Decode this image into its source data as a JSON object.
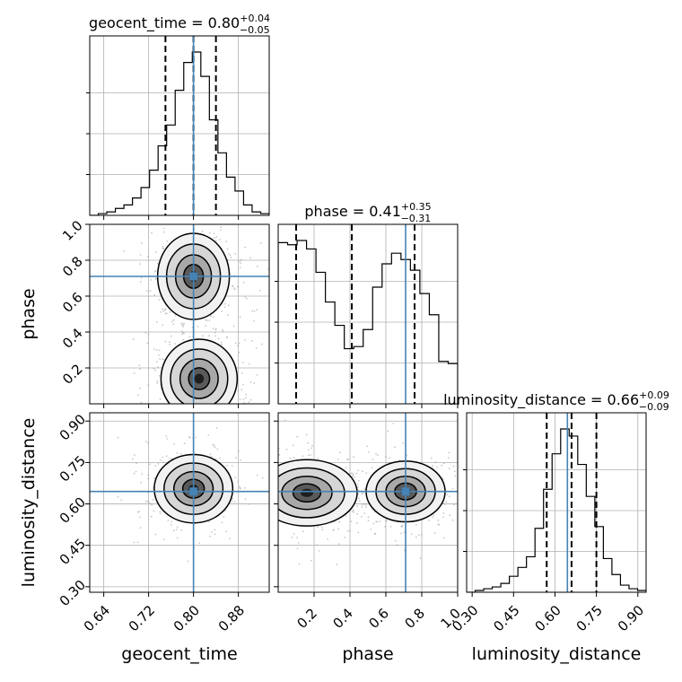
{
  "colors": {
    "truth": "#4682b4",
    "hist": "#000000",
    "quantile": "#000000",
    "scatter": "#9a9a9a"
  },
  "chart_data": {
    "type": "corner",
    "grid": true,
    "params": [
      {
        "name": "geocent_time",
        "xlabel": "geocent_time",
        "range": [
          0.615,
          0.935
        ],
        "ticks": [
          "0.64",
          "0.72",
          "0.80",
          "0.88"
        ],
        "tick_values": [
          0.64,
          0.72,
          0.8,
          0.88
        ],
        "truth": 0.8,
        "quantiles": [
          0.75,
          0.8,
          0.84
        ],
        "title": {
          "prefix": "geocent_time = 0.80",
          "sup": "+0.04",
          "sub": "−0.05"
        },
        "hist": [
          0,
          1,
          2,
          4,
          6,
          10,
          16,
          26,
          40,
          52,
          72,
          88,
          94,
          80,
          55,
          36,
          22,
          14,
          6,
          2,
          1
        ]
      },
      {
        "name": "phase",
        "xlabel": "phase",
        "ylabel": "phase",
        "range": [
          0.0,
          1.0
        ],
        "ticks": [
          "0.2",
          "0.4",
          "0.6",
          "0.8",
          "1.0"
        ],
        "tick_values": [
          0.2,
          0.4,
          0.6,
          0.8,
          1.0
        ],
        "truth": 0.71,
        "quantiles": [
          0.1,
          0.41,
          0.76
        ],
        "title": {
          "prefix": "phase = 0.41",
          "sup": "+0.35",
          "sub": "−0.31"
        },
        "hist": [
          76,
          75,
          77,
          73,
          62,
          48,
          37,
          26,
          27,
          35,
          55,
          66,
          71,
          68,
          63,
          52,
          42,
          20,
          19
        ]
      },
      {
        "name": "luminosity_distance",
        "xlabel": "luminosity_distance",
        "ylabel": "luminosity_distance",
        "range": [
          0.28,
          0.93
        ],
        "ticks": [
          "0.30",
          "0.45",
          "0.60",
          "0.75",
          "0.90"
        ],
        "tick_values": [
          0.3,
          0.45,
          0.6,
          0.75,
          0.9
        ],
        "truth": 0.645,
        "quantiles": [
          0.57,
          0.66,
          0.75
        ],
        "title": {
          "prefix": "luminosity_distance = 0.66",
          "sup": "+0.09",
          "sub": "−0.09"
        },
        "hist": [
          0,
          1,
          2,
          3,
          5,
          9,
          14,
          20,
          36,
          58,
          78,
          92,
          88,
          72,
          54,
          37,
          19,
          10,
          4,
          2,
          1
        ]
      }
    ],
    "blobs": {
      "1_0": [
        {
          "x": 0.8,
          "y": 0.71,
          "sx": 0.032,
          "sy": 0.12,
          "w": 1.0
        },
        {
          "x": 0.81,
          "y": 0.14,
          "sx": 0.034,
          "sy": 0.11,
          "w": 1.05
        }
      ],
      "2_0": [
        {
          "x": 0.8,
          "y": 0.655,
          "sx": 0.035,
          "sy": 0.062,
          "w": 1.0
        }
      ],
      "2_1": [
        {
          "x": 0.16,
          "y": 0.64,
          "sx": 0.14,
          "sy": 0.06,
          "w": 1.0
        },
        {
          "x": 0.71,
          "y": 0.645,
          "sx": 0.11,
          "sy": 0.055,
          "w": 1.0
        }
      ]
    }
  }
}
